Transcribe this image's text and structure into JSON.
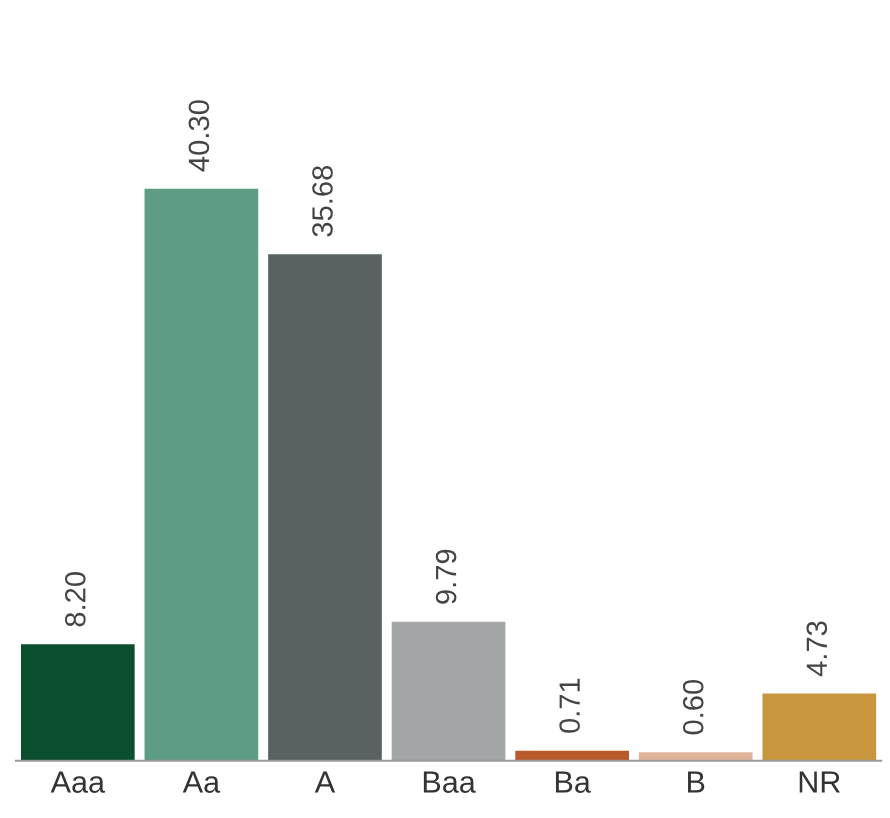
{
  "chart_data": {
    "type": "bar",
    "categories": [
      "Aaa",
      "Aa",
      "A",
      "Baa",
      "Ba",
      "B",
      "NR"
    ],
    "values": [
      8.2,
      40.3,
      35.68,
      9.79,
      0.71,
      0.6,
      4.73
    ],
    "value_labels": [
      "8.20",
      "40.30",
      "35.68",
      "9.79",
      "0.71",
      "0.60",
      "4.73"
    ],
    "colors": [
      "#0b4f2f",
      "#5e9c84",
      "#5a6163",
      "#a3a6a6",
      "#b85a2a",
      "#e0b49a",
      "#c99640"
    ],
    "grid": false,
    "legend": false,
    "tick_labels": "x"
  }
}
